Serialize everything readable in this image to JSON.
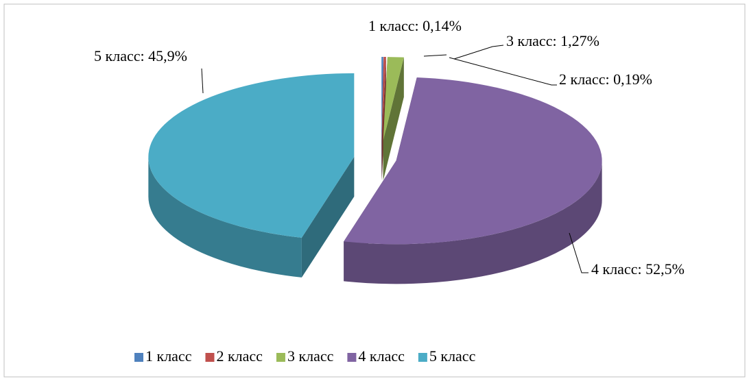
{
  "chart_data": {
    "type": "pie3d",
    "categories": [
      "1 класс",
      "2 класс",
      "3 класс",
      "4 класс",
      "5 класс"
    ],
    "values": [
      0.14,
      0.19,
      1.27,
      52.5,
      45.9
    ],
    "value_labels": [
      "1 класс: 0,14%",
      "2 класс: 0,19%",
      "3 класс: 1,27%",
      "4 класс: 52,5%",
      "5 класс: 45,9%"
    ],
    "colors": [
      "#4f81bd",
      "#c0504d",
      "#9bbb59",
      "#8064a2",
      "#4bacc6"
    ],
    "legend": "bottom"
  }
}
